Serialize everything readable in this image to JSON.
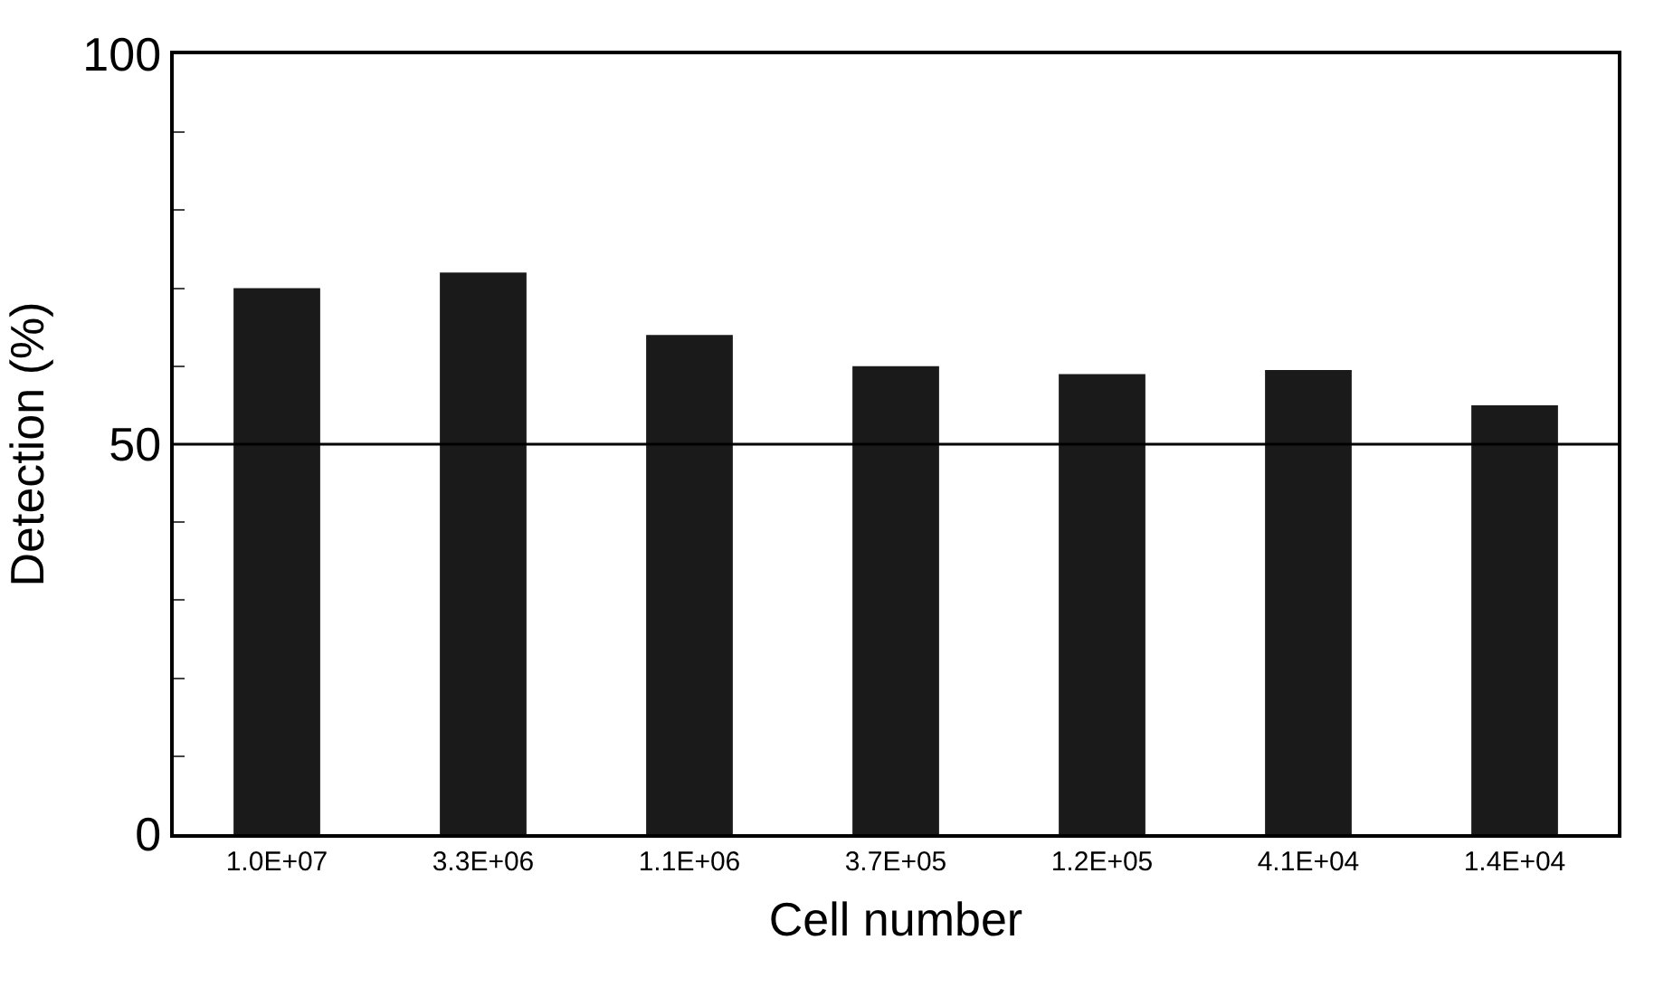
{
  "chart_data": {
    "type": "bar",
    "xlabel": "Cell number",
    "ylabel": "Detection (%)",
    "categories": [
      "1.0E+07",
      "3.3E+06",
      "1.1E+06",
      "3.7E+05",
      "1.2E+05",
      "4.1E+04",
      "1.4E+04"
    ],
    "values": [
      70,
      72,
      64,
      60,
      59,
      59.5,
      55
    ],
    "color": "#1a1a1a",
    "ylim": [
      0,
      100
    ],
    "yticks": [
      0,
      {
        "value": 10,
        "label": null
      },
      {
        "value": 20,
        "label": null
      },
      {
        "value": 30,
        "label": null
      },
      {
        "value": 40,
        "label": null
      },
      50,
      {
        "value": 60,
        "label": null
      },
      {
        "value": 70,
        "label": null
      },
      {
        "value": 80,
        "label": null
      },
      {
        "value": 90,
        "label": null
      },
      100
    ],
    "ref_lines": [
      {
        "axis": "y",
        "value": 50,
        "color": "#000000"
      }
    ]
  }
}
